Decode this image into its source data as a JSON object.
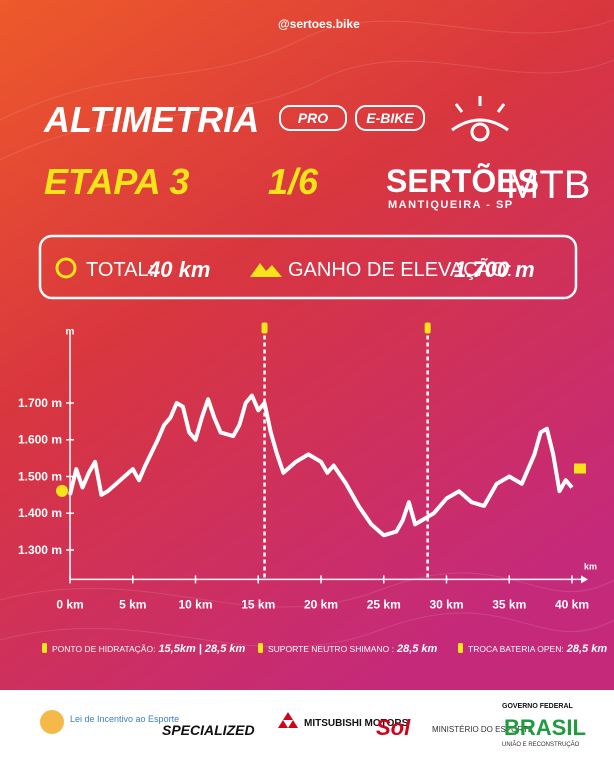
{
  "header": {
    "handle": "@sertoes.bike",
    "title": "ALTIMETRIA",
    "tags": [
      "PRO",
      "E-BIKE"
    ],
    "stage": "ETAPA 3",
    "fraction": "1/6",
    "brand": "SERTÕES",
    "brand_suffix": "MTB",
    "brand_place": "MANTIQUEIRA - SP"
  },
  "summary": {
    "total_label": "TOTAL:",
    "total_value": "40 km",
    "gain_label": "GANHO DE ELEVAÇÃO:",
    "gain_value": "1.700 m"
  },
  "chart_data": {
    "type": "line",
    "y_label": "m",
    "x_label": "km",
    "color": "#ffffff",
    "x": [
      0,
      0.5,
      1,
      1.5,
      2,
      2.5,
      3,
      4,
      5,
      5.5,
      6,
      7,
      7.5,
      8,
      8.5,
      9,
      9.5,
      10,
      10.5,
      11,
      11.5,
      12,
      13,
      13.5,
      14,
      14.5,
      15,
      15.5,
      16,
      16.5,
      17,
      18,
      19,
      20,
      20.5,
      21,
      22,
      23,
      24,
      25,
      26,
      26.5,
      27,
      27.5,
      28,
      29,
      30,
      31,
      32,
      33,
      34,
      35,
      36,
      37,
      37.5,
      38,
      38.5,
      39,
      39.5,
      40
    ],
    "values": [
      1450,
      1520,
      1470,
      1510,
      1540,
      1450,
      1460,
      1490,
      1520,
      1490,
      1530,
      1600,
      1640,
      1660,
      1700,
      1690,
      1620,
      1600,
      1660,
      1710,
      1660,
      1620,
      1610,
      1640,
      1700,
      1720,
      1680,
      1700,
      1620,
      1560,
      1510,
      1540,
      1560,
      1540,
      1510,
      1530,
      1480,
      1420,
      1370,
      1340,
      1350,
      1380,
      1430,
      1370,
      1380,
      1400,
      1440,
      1460,
      1430,
      1420,
      1480,
      1500,
      1480,
      1560,
      1620,
      1630,
      1560,
      1460,
      1490,
      1470
    ],
    "markers": [
      15.5,
      28.5
    ],
    "xlim": [
      0,
      40
    ],
    "ylim": [
      1220,
      1870
    ],
    "xticks": [
      {
        "value": 0,
        "label": "0 km"
      },
      {
        "value": 5,
        "label": "5 km"
      },
      {
        "value": 10,
        "label": "10 km"
      },
      {
        "value": 15,
        "label": "15 km"
      },
      {
        "value": 20,
        "label": "20 km"
      },
      {
        "value": 25,
        "label": "25 km"
      },
      {
        "value": 30,
        "label": "30 km"
      },
      {
        "value": 35,
        "label": "35 km"
      },
      {
        "value": 40,
        "label": "40 km"
      }
    ],
    "yticks": [
      {
        "value": 1300,
        "label": "1.300 m"
      },
      {
        "value": 1400,
        "label": "1.400 m"
      },
      {
        "value": 1500,
        "label": "1.500 m"
      },
      {
        "value": 1600,
        "label": "1.600 m"
      },
      {
        "value": 1700,
        "label": "1.700 m"
      }
    ]
  },
  "legend": [
    {
      "label": "PONTO DE HIDRATAÇÃO:",
      "value": "15,5km | 28,5 km"
    },
    {
      "label": "SUPORTE NEUTRO SHIMANO :",
      "value": "28,5 km"
    },
    {
      "label": "TROCA BATERIA OPEN:",
      "value": "28,5 km"
    }
  ],
  "sponsors": {
    "lei": "Lei de Incentivo ao Esporte",
    "specialized": "SPECIALIZED",
    "mitsubishi": "MITSUBISHI MOTORS",
    "sol": "Sol",
    "ministerio": "MINISTÉRIO DO ESPORTE",
    "gov": "GOVERNO FEDERAL",
    "brasil": "BRASIL",
    "slogan": "UNIÃO E RECONSTRUÇÃO"
  }
}
